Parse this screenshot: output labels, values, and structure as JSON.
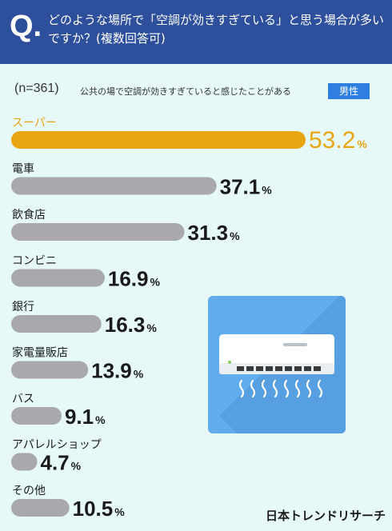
{
  "header": {
    "q_mark": "Q.",
    "question": "どのような場所で「空調が効きすぎている」と思う場合が多いですか？(複数回答可)"
  },
  "subheader": {
    "sample": "(n=361)",
    "condition": "公共の場で空調が効きすぎていると感じたことがある",
    "badge": "男性"
  },
  "colors": {
    "header_bg": "#2d4f9c",
    "background": "#e6f8f8",
    "highlight_bar": "#e8a613",
    "highlight_text": "#e8a613",
    "bar": "#a8a8ad",
    "badge": "#2f7fe0",
    "illustration": "#61acec"
  },
  "illustration": "air-conditioner-icon",
  "chart_data": {
    "type": "bar",
    "orientation": "horizontal",
    "unit": "%",
    "categories": [
      "スーパー",
      "電車",
      "飲食店",
      "コンビニ",
      "銀行",
      "家電量販店",
      "バス",
      "アパレルショップ",
      "その他"
    ],
    "values": [
      53.2,
      37.1,
      31.3,
      16.9,
      16.3,
      13.9,
      9.1,
      4.7,
      10.5
    ],
    "value_labels": [
      "53.2",
      "37.1",
      "31.3",
      "16.9",
      "16.3",
      "13.9",
      "9.1",
      "4.7",
      "10.5"
    ],
    "highlight_index": 0,
    "xlim": [
      0,
      53.2
    ]
  },
  "footer": {
    "logo": "日本トレンドリサーチ"
  }
}
